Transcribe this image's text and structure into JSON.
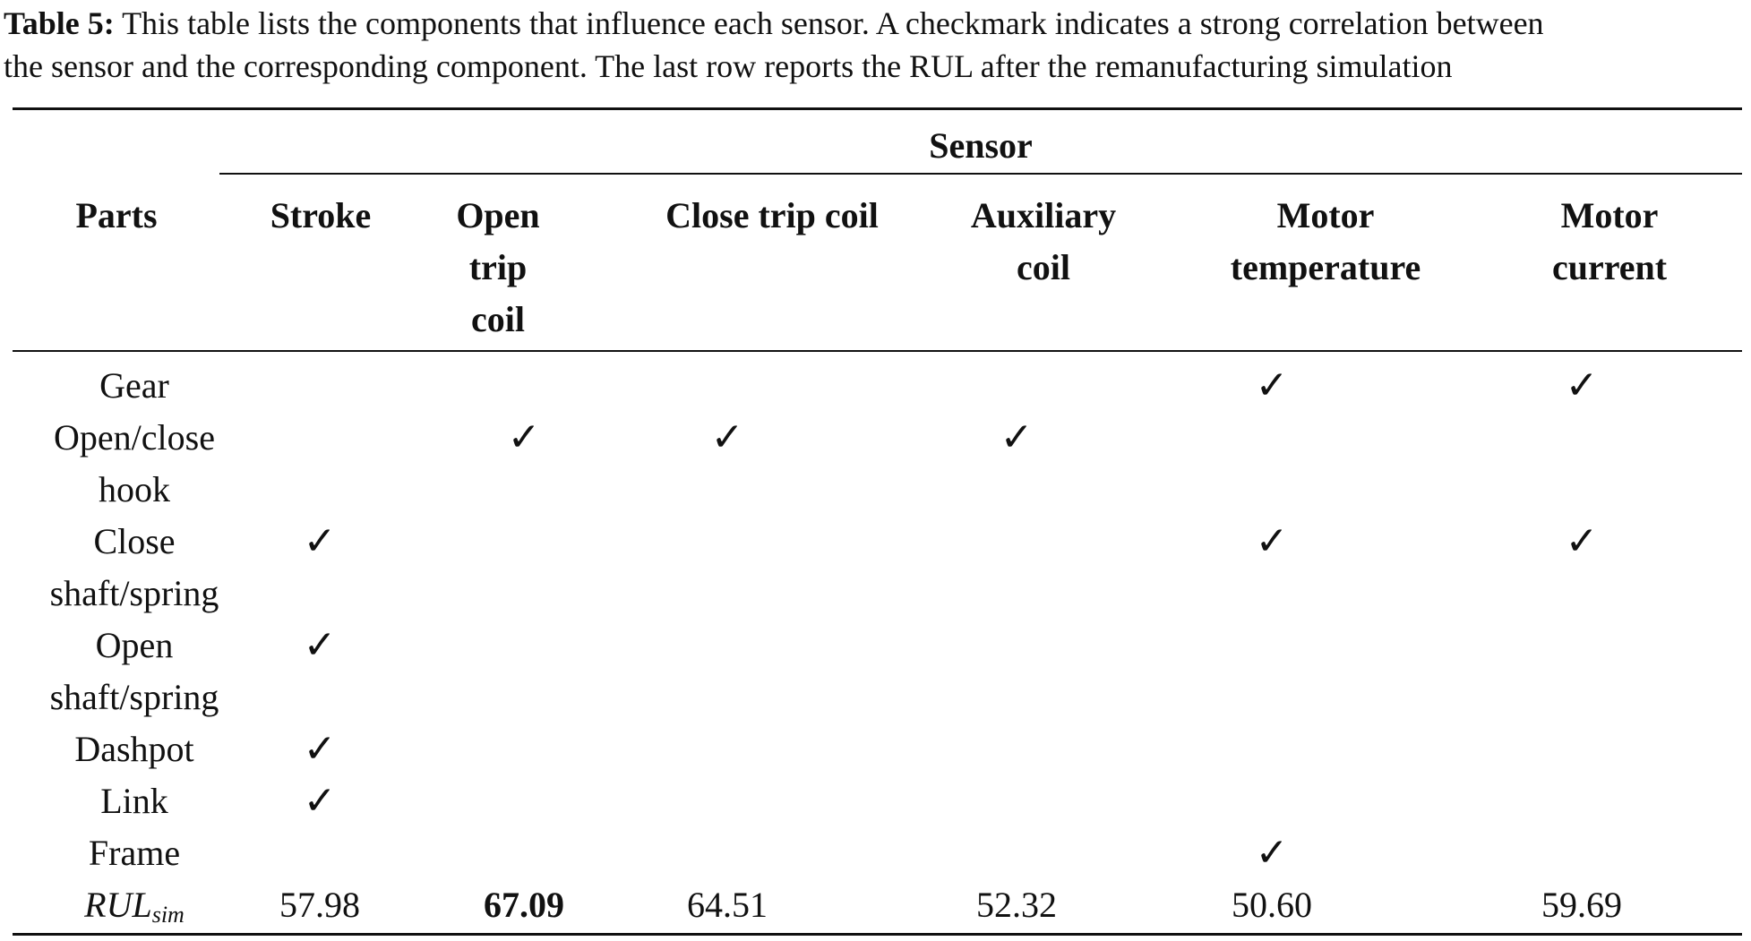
{
  "caption": {
    "label": "Table 5:",
    "text_line1": "This table lists the components that influence each sensor. A checkmark indicates a strong correlation between",
    "text_line2": "the sensor and the corresponding component. The last row reports the RUL after the remanufacturing simulation"
  },
  "table": {
    "group_header": "Sensor",
    "parts_header": "Parts",
    "columns": [
      {
        "l1": "Stroke",
        "l2": "",
        "l3": ""
      },
      {
        "l1": "Open",
        "l2": "trip",
        "l3": "coil"
      },
      {
        "l1": "Close trip coil",
        "l2": "",
        "l3": ""
      },
      {
        "l1": "Auxiliary",
        "l2": "coil",
        "l3": ""
      },
      {
        "l1": "Motor",
        "l2": "temperature",
        "l3": ""
      },
      {
        "l1": "Motor",
        "l2": "current",
        "l3": ""
      }
    ],
    "check_symbol": "✓",
    "rows": [
      {
        "l1": "Gear",
        "l2": "",
        "checks": [
          false,
          false,
          false,
          false,
          true,
          true
        ]
      },
      {
        "l1": "Open/close",
        "l2": "hook",
        "checks": [
          false,
          true,
          true,
          true,
          false,
          false
        ]
      },
      {
        "l1": "Close",
        "l2": "shaft/spring",
        "checks": [
          true,
          false,
          false,
          false,
          true,
          true
        ]
      },
      {
        "l1": "Open",
        "l2": "shaft/spring",
        "checks": [
          true,
          false,
          false,
          false,
          false,
          false
        ]
      },
      {
        "l1": "Dashpot",
        "l2": "",
        "checks": [
          true,
          false,
          false,
          false,
          false,
          false
        ]
      },
      {
        "l1": "Link",
        "l2": "",
        "checks": [
          true,
          false,
          false,
          false,
          false,
          false
        ]
      },
      {
        "l1": "Frame",
        "l2": "",
        "checks": [
          false,
          false,
          false,
          false,
          true,
          false
        ]
      }
    ],
    "rul_row": {
      "label_main": "RUL",
      "label_sub": "sim",
      "values": [
        "57.98",
        "67.09",
        "64.51",
        "52.32",
        "50.60",
        "59.69"
      ],
      "bold_index": 1
    }
  }
}
